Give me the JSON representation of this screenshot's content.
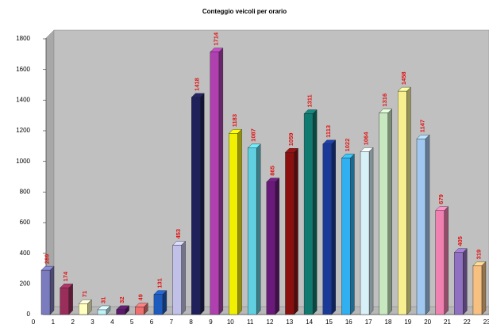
{
  "chart_data": {
    "type": "bar3d",
    "title": "Conteggio veicoli per orario",
    "categories": [
      "0",
      "1",
      "2",
      "3",
      "4",
      "5",
      "6",
      "7",
      "8",
      "9",
      "10",
      "11",
      "12",
      "13",
      "14",
      "15",
      "16",
      "17",
      "18",
      "19",
      "20",
      "21",
      "22",
      "23"
    ],
    "values": [
      289,
      174,
      71,
      31,
      32,
      49,
      131,
      453,
      1418,
      1714,
      1183,
      1087,
      865,
      1059,
      1311,
      1113,
      1022,
      1064,
      1316,
      1458,
      1147,
      679,
      405,
      319
    ],
    "colors": [
      "#7b7bc0",
      "#9b2d5b",
      "#ffffc0",
      "#c0f0f8",
      "#5a1a6a",
      "#f07070",
      "#1e5bbf",
      "#c0c0e8",
      "#20205a",
      "#b040b0",
      "#f0f000",
      "#60d0e0",
      "#6a1a7a",
      "#8a1010",
      "#107a70",
      "#1a3a9a",
      "#30b0f0",
      "#d8f0f8",
      "#c8e8c0",
      "#f8f090",
      "#a0c8f0",
      "#f080b0",
      "#9070c0",
      "#f8c080"
    ],
    "ylim": [
      0,
      1800
    ],
    "yticks": [
      0,
      200,
      400,
      600,
      800,
      1000,
      1200,
      1400,
      1600,
      1800
    ],
    "grid": false
  }
}
